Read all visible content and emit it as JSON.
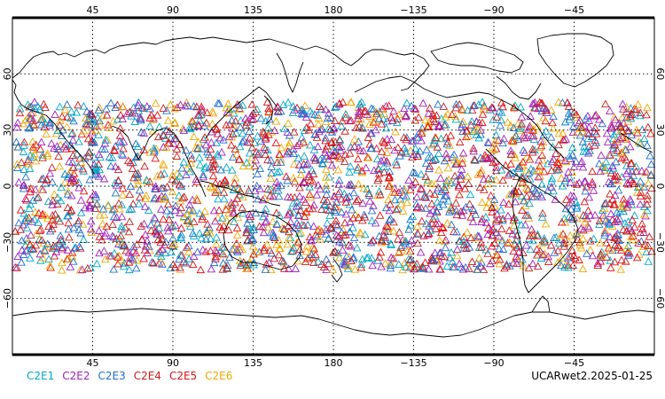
{
  "map": {
    "top_axis_labels": [
      "45",
      "90",
      "135",
      "180",
      "−135",
      "−90",
      "−45"
    ],
    "bottom_axis_labels": [
      "45",
      "90",
      "135",
      "180",
      "−135",
      "−90",
      "−45"
    ],
    "lat_labels": [
      "60",
      "30",
      "0",
      "−30",
      "−60"
    ],
    "lon_values": [
      45,
      90,
      135,
      180,
      -135,
      -90,
      -45
    ],
    "lat_values": [
      60,
      30,
      0,
      -30,
      -60
    ],
    "lon_range": [
      0,
      360
    ],
    "lat_range": [
      -90,
      90
    ],
    "occultation_band": [
      -45,
      45
    ],
    "coastline_color": "#000000",
    "grid": "dotted"
  },
  "legend": {
    "items": [
      {
        "label": "C2E1",
        "color": "#00a8c8"
      },
      {
        "label": "C2E2",
        "color": "#a020c0"
      },
      {
        "label": "C2E3",
        "color": "#1f6fd0"
      },
      {
        "label": "C2E4",
        "color": "#c81e1e"
      },
      {
        "label": "C2E5",
        "color": "#e01010"
      },
      {
        "label": "C2E6",
        "color": "#f0a800"
      }
    ]
  },
  "footer": {
    "label": "UCARwet2.2025-01-25"
  }
}
